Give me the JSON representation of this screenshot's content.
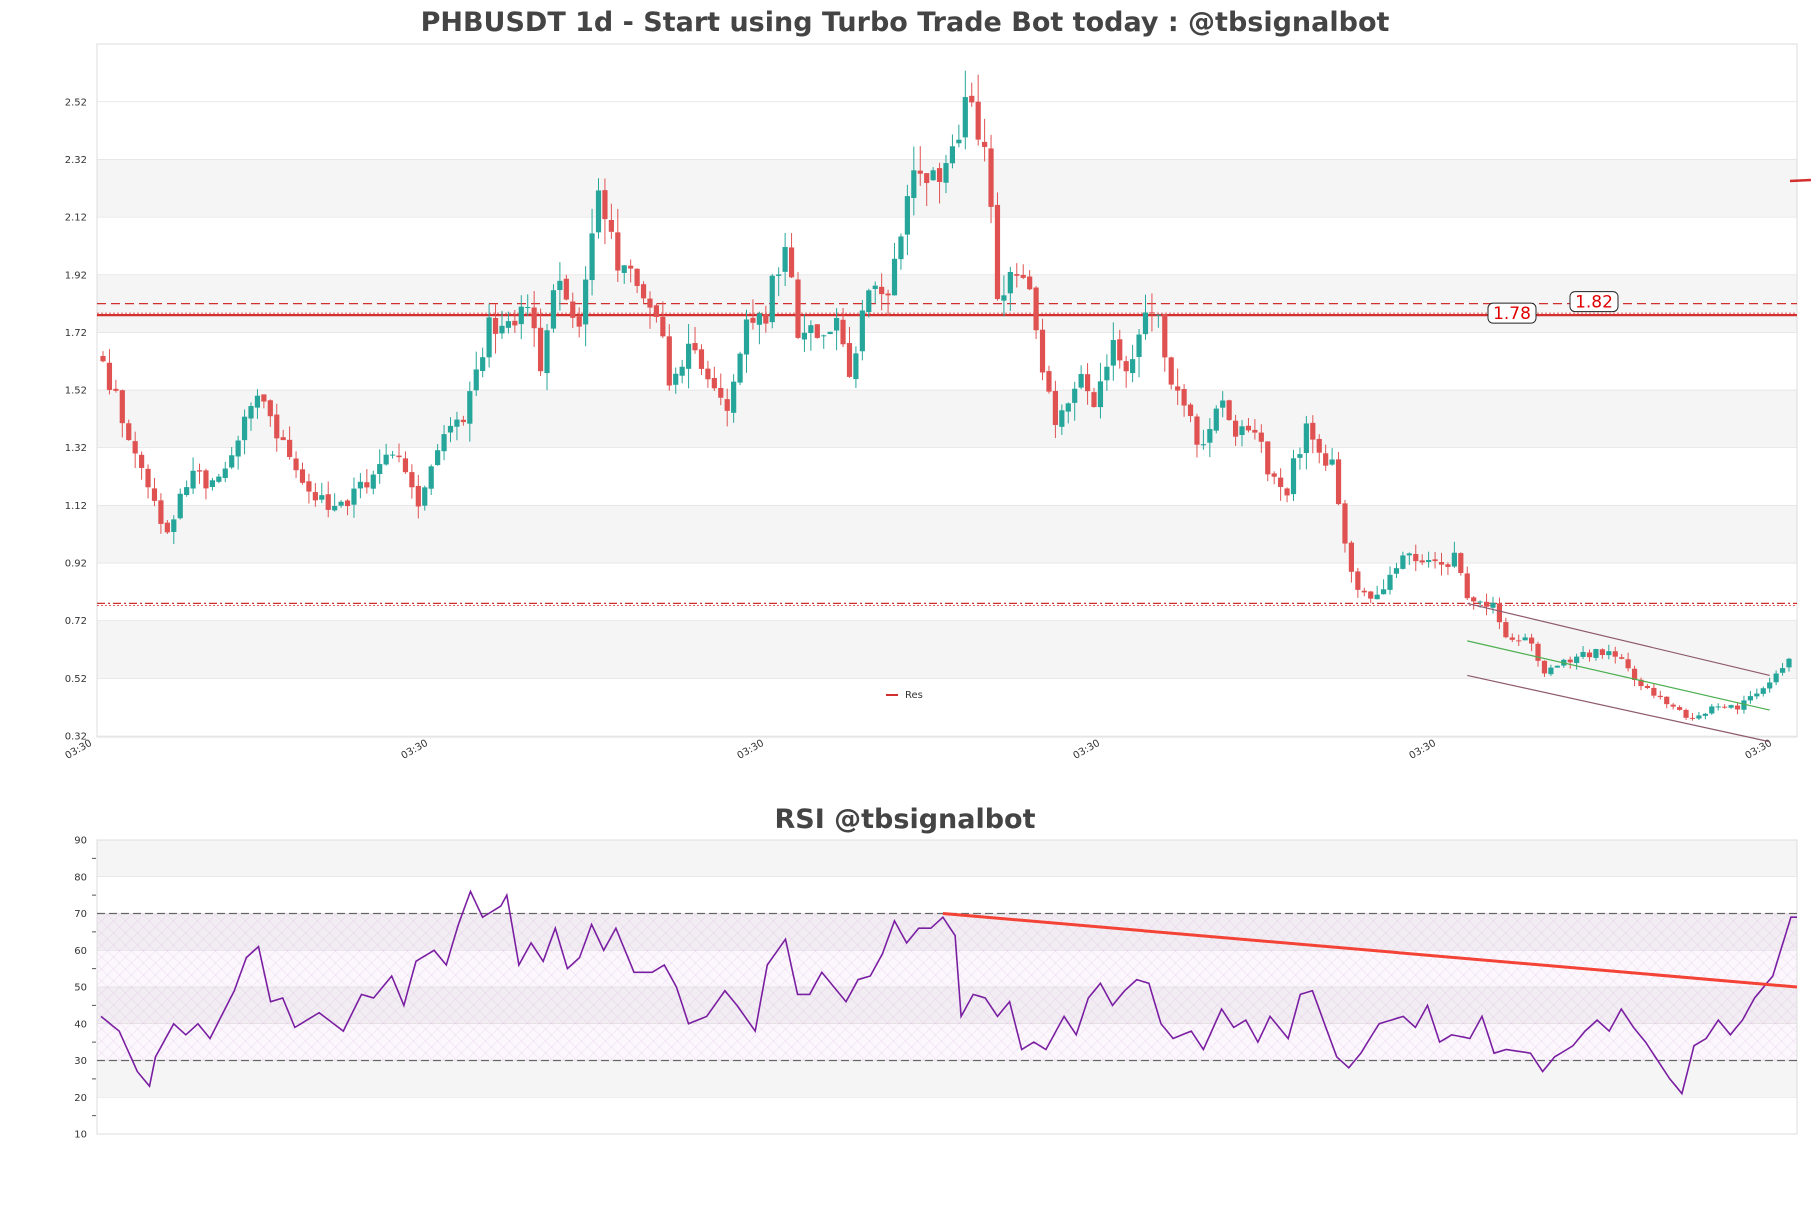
{
  "colors": {
    "up": "#26a69a",
    "down": "#e05252",
    "resistance": "#d32f2f",
    "rsi_line": "#7b1fa2",
    "rsi_trend": "#f44336",
    "channel": "#8d5a6e",
    "midline": "#4caf50",
    "band": "#f5f5f5",
    "grid": "#dddddd"
  },
  "chart_data": [
    {
      "type": "candlestick",
      "title": "PHBUSDT 1d - Start using Turbo Trade Bot today : @tbsignalbot",
      "ylim": [
        0.32,
        2.62
      ],
      "y_ticks": [
        "0.32",
        "0.52",
        "0.72",
        "0.92",
        "1.12",
        "1.32",
        "1.52",
        "1.72",
        "1.92",
        "2.12",
        "2.32",
        "2.52"
      ],
      "x_ticks": [
        "03:30",
        "03:30",
        "03:30",
        "03:30",
        "03:30",
        "03:30"
      ],
      "legend": {
        "label": "Res",
        "placement": "bottom-center"
      },
      "resistance_levels": [
        1.82,
        1.78,
        0.78
      ],
      "level_labels": [
        "1.82",
        "1.78"
      ],
      "anchors": [
        [
          0,
          1.62
        ],
        [
          8,
          1.12
        ],
        [
          10,
          1.04
        ],
        [
          14,
          1.26
        ],
        [
          17,
          1.18
        ],
        [
          22,
          1.4
        ],
        [
          24,
          1.52
        ],
        [
          27,
          1.36
        ],
        [
          31,
          1.2
        ],
        [
          36,
          1.1
        ],
        [
          41,
          1.2
        ],
        [
          45,
          1.3
        ],
        [
          49,
          1.14
        ],
        [
          53,
          1.36
        ],
        [
          56,
          1.4
        ],
        [
          60,
          1.76
        ],
        [
          62,
          1.72
        ],
        [
          66,
          1.8
        ],
        [
          68,
          1.6
        ],
        [
          70,
          1.9
        ],
        [
          74,
          1.75
        ],
        [
          77,
          2.18
        ],
        [
          80,
          1.95
        ],
        [
          83,
          1.92
        ],
        [
          86,
          1.8
        ],
        [
          88,
          1.56
        ],
        [
          91,
          1.65
        ],
        [
          95,
          1.55
        ],
        [
          97,
          1.42
        ],
        [
          100,
          1.8
        ],
        [
          103,
          1.78
        ],
        [
          106,
          2.06
        ],
        [
          108,
          1.74
        ],
        [
          111,
          1.7
        ],
        [
          114,
          1.75
        ],
        [
          116,
          1.6
        ],
        [
          119,
          1.86
        ],
        [
          122,
          1.82
        ],
        [
          125,
          2.2
        ],
        [
          127,
          2.3
        ],
        [
          130,
          2.2
        ],
        [
          134,
          2.48
        ],
        [
          137,
          2.42
        ],
        [
          139,
          1.82
        ],
        [
          141,
          1.94
        ],
        [
          144,
          1.84
        ],
        [
          146,
          1.55
        ],
        [
          148,
          1.42
        ],
        [
          152,
          1.55
        ],
        [
          154,
          1.45
        ],
        [
          157,
          1.7
        ],
        [
          159,
          1.6
        ],
        [
          162,
          1.75
        ],
        [
          164,
          1.76
        ],
        [
          166,
          1.55
        ],
        [
          168,
          1.44
        ],
        [
          171,
          1.32
        ],
        [
          174,
          1.48
        ],
        [
          176,
          1.35
        ],
        [
          179,
          1.4
        ],
        [
          181,
          1.22
        ],
        [
          184,
          1.18
        ],
        [
          187,
          1.4
        ],
        [
          189,
          1.3
        ],
        [
          191,
          1.26
        ],
        [
          193,
          0.98
        ],
        [
          195,
          0.84
        ],
        [
          197,
          0.78
        ],
        [
          200,
          0.88
        ],
        [
          203,
          0.95
        ],
        [
          206,
          0.93
        ],
        [
          208,
          0.9
        ],
        [
          210,
          0.95
        ],
        [
          212,
          0.78
        ],
        [
          216,
          0.78
        ],
        [
          218,
          0.67
        ],
        [
          222,
          0.64
        ],
        [
          224,
          0.54
        ],
        [
          227,
          0.58
        ],
        [
          232,
          0.61
        ],
        [
          236,
          0.6
        ],
        [
          238,
          0.52
        ],
        [
          241,
          0.47
        ],
        [
          243,
          0.43
        ],
        [
          247,
          0.38
        ],
        [
          250,
          0.42
        ],
        [
          254,
          0.42
        ],
        [
          258,
          0.49
        ],
        [
          262,
          0.58
        ]
      ],
      "channel_lines": [
        {
          "from": [
            212,
            0.78
          ],
          "to": [
            259,
            0.53
          ]
        },
        {
          "from": [
            212,
            0.65
          ],
          "to": [
            259,
            0.41
          ]
        },
        {
          "from": [
            212,
            0.53
          ],
          "to": [
            259,
            0.3
          ]
        }
      ]
    },
    {
      "type": "line",
      "title": "RSI @tbsignalbot",
      "ylim": [
        10,
        90
      ],
      "y_ticks": [
        "10",
        "20",
        "30",
        "40",
        "50",
        "60",
        "70",
        "80",
        "90"
      ],
      "overbought": 70,
      "oversold": 30,
      "anchors": [
        [
          0,
          42
        ],
        [
          3,
          38
        ],
        [
          6,
          27
        ],
        [
          8,
          23
        ],
        [
          9,
          31
        ],
        [
          12,
          40
        ],
        [
          14,
          37
        ],
        [
          16,
          40
        ],
        [
          18,
          36
        ],
        [
          22,
          49
        ],
        [
          24,
          58
        ],
        [
          26,
          61
        ],
        [
          28,
          46
        ],
        [
          30,
          47
        ],
        [
          32,
          39
        ],
        [
          36,
          43
        ],
        [
          40,
          38
        ],
        [
          43,
          48
        ],
        [
          45,
          47
        ],
        [
          48,
          53
        ],
        [
          50,
          45
        ],
        [
          52,
          57
        ],
        [
          55,
          60
        ],
        [
          57,
          56
        ],
        [
          59,
          67
        ],
        [
          61,
          76
        ],
        [
          63,
          69
        ],
        [
          66,
          72
        ],
        [
          67,
          75
        ],
        [
          69,
          56
        ],
        [
          71,
          62
        ],
        [
          73,
          57
        ],
        [
          75,
          66
        ],
        [
          77,
          55
        ],
        [
          79,
          58
        ],
        [
          81,
          67
        ],
        [
          83,
          60
        ],
        [
          85,
          66
        ],
        [
          88,
          54
        ],
        [
          91,
          54
        ],
        [
          93,
          56
        ],
        [
          95,
          50
        ],
        [
          97,
          40
        ],
        [
          100,
          42
        ],
        [
          103,
          49
        ],
        [
          105,
          45
        ],
        [
          108,
          38
        ],
        [
          110,
          56
        ],
        [
          113,
          63
        ],
        [
          115,
          48
        ],
        [
          117,
          48
        ],
        [
          119,
          54
        ],
        [
          121,
          50
        ],
        [
          123,
          46
        ],
        [
          125,
          52
        ],
        [
          127,
          53
        ],
        [
          129,
          59
        ],
        [
          131,
          68
        ],
        [
          133,
          62
        ],
        [
          135,
          66
        ],
        [
          137,
          66
        ],
        [
          139,
          69
        ],
        [
          141,
          64
        ],
        [
          142,
          42
        ],
        [
          144,
          48
        ],
        [
          146,
          47
        ],
        [
          148,
          42
        ],
        [
          150,
          46
        ],
        [
          152,
          33
        ],
        [
          154,
          35
        ],
        [
          156,
          33
        ],
        [
          159,
          42
        ],
        [
          161,
          37
        ],
        [
          163,
          47
        ],
        [
          165,
          51
        ],
        [
          167,
          45
        ],
        [
          169,
          49
        ],
        [
          171,
          52
        ],
        [
          173,
          51
        ],
        [
          175,
          40
        ],
        [
          177,
          36
        ],
        [
          180,
          38
        ],
        [
          182,
          33
        ],
        [
          185,
          44
        ],
        [
          187,
          39
        ],
        [
          189,
          41
        ],
        [
          191,
          35
        ],
        [
          193,
          42
        ],
        [
          196,
          36
        ],
        [
          198,
          48
        ],
        [
          200,
          49
        ],
        [
          202,
          40
        ],
        [
          204,
          31
        ],
        [
          206,
          28
        ],
        [
          208,
          32
        ],
        [
          211,
          40
        ],
        [
          213,
          41
        ],
        [
          215,
          42
        ],
        [
          217,
          39
        ],
        [
          219,
          45
        ],
        [
          221,
          35
        ],
        [
          223,
          37
        ],
        [
          226,
          36
        ],
        [
          228,
          42
        ],
        [
          230,
          32
        ],
        [
          232,
          33
        ],
        [
          236,
          32
        ],
        [
          238,
          27
        ],
        [
          240,
          31
        ],
        [
          243,
          34
        ],
        [
          245,
          38
        ],
        [
          247,
          41
        ],
        [
          249,
          38
        ],
        [
          251,
          44
        ],
        [
          253,
          39
        ],
        [
          255,
          35
        ],
        [
          257,
          30
        ],
        [
          259,
          25
        ],
        [
          261,
          21
        ],
        [
          263,
          34
        ],
        [
          265,
          36
        ],
        [
          267,
          41
        ],
        [
          269,
          37
        ],
        [
          271,
          41
        ],
        [
          273,
          47
        ],
        [
          276,
          53
        ],
        [
          279,
          69
        ]
      ],
      "trend_line": {
        "from": [
          139,
          70
        ],
        "to": [
          281,
          50
        ]
      }
    }
  ]
}
